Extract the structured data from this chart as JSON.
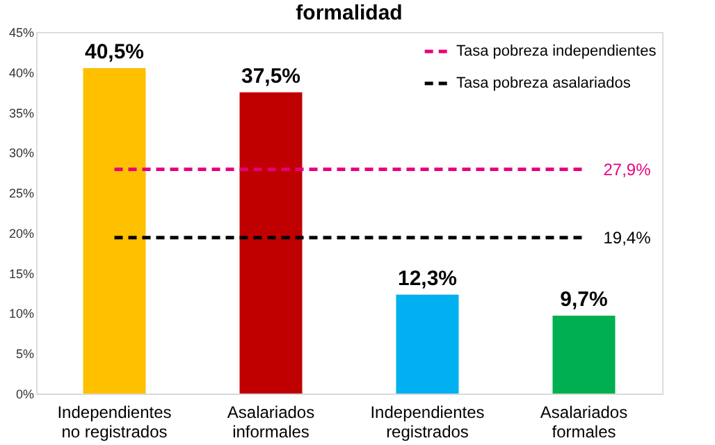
{
  "chart_data": {
    "type": "bar",
    "title": "formalidad",
    "categories": [
      "Independientes\nno registrados",
      "Asalariados\ninformales",
      "Independientes\nregistrados",
      "Asalariados\nformales"
    ],
    "series": [
      {
        "colors": [
          "#ffc000",
          "#c00000",
          "#00b0f0",
          "#00b050"
        ],
        "values": [
          40.5,
          37.5,
          12.3,
          9.7
        ],
        "value_labels": [
          "40,5%",
          "37,5%",
          "12,3%",
          "9,7%"
        ]
      },
      {
        "type": "line",
        "name": "Tasa pobreza independientes",
        "color": "#e6007e",
        "line_style": "dashed",
        "values": [
          27.9,
          27.9,
          27.9,
          27.9
        ],
        "value_labels": [
          null,
          null,
          null,
          "27,9%"
        ]
      },
      {
        "type": "line",
        "name": "Tasa pobreza asalariados",
        "color": "#000000",
        "line_style": "dashed",
        "values": [
          19.4,
          19.4,
          19.4,
          19.4
        ],
        "value_labels": [
          null,
          null,
          null,
          "19,4%"
        ]
      }
    ],
    "ylim": [
      0,
      45
    ],
    "yticks": [
      {
        "value": 0,
        "label": "0%"
      },
      {
        "value": 5,
        "label": "5%"
      },
      {
        "value": 10,
        "label": "10%"
      },
      {
        "value": 15,
        "label": "15%"
      },
      {
        "value": 20,
        "label": "20%"
      },
      {
        "value": 25,
        "label": "25%"
      },
      {
        "value": 30,
        "label": "30%"
      },
      {
        "value": 35,
        "label": "35%"
      },
      {
        "value": 40,
        "label": "40%"
      },
      {
        "value": 45,
        "label": "45%"
      }
    ],
    "grid": false,
    "legend": "top right"
  }
}
